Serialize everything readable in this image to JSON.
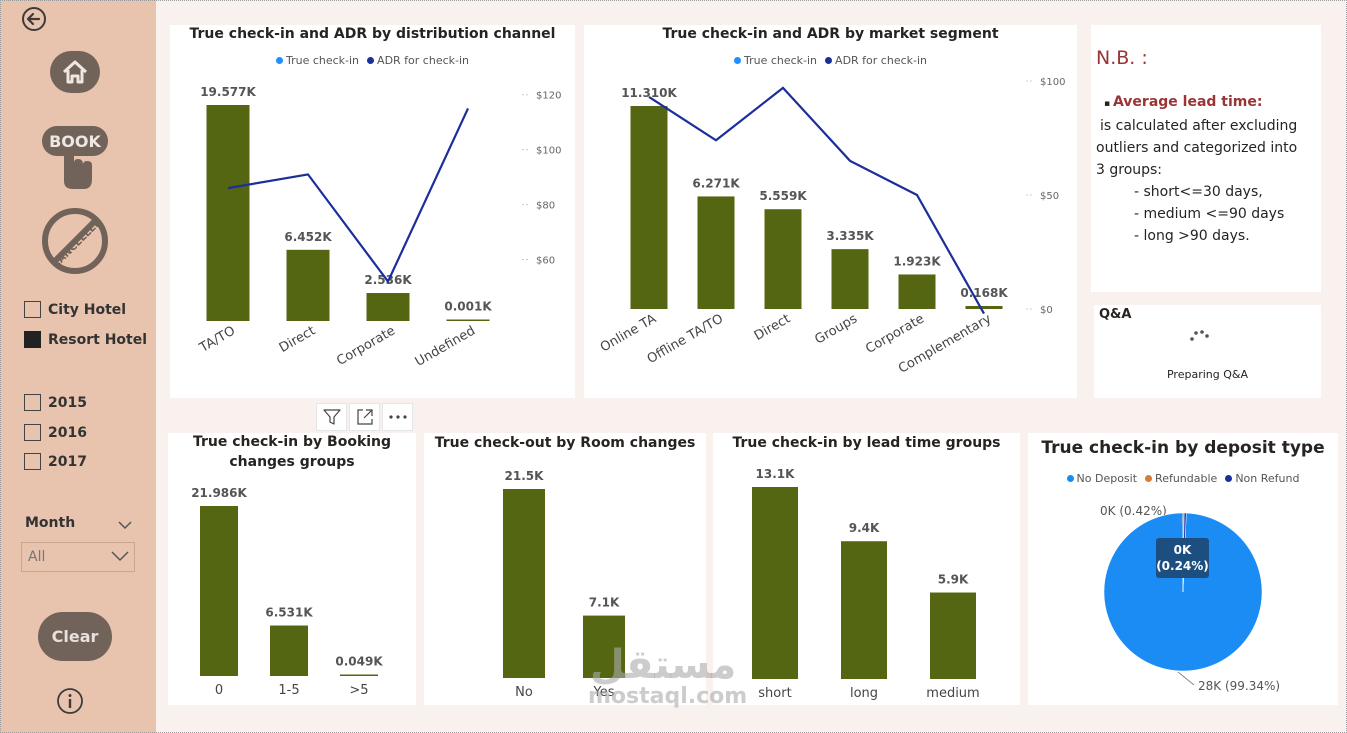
{
  "sidebar": {
    "icons": [
      "back-arrow-icon",
      "home-icon",
      "book-icon",
      "cancelled-icon",
      "info-icon"
    ],
    "book_text": "BOOK",
    "cancelled_text": "CANCELLED",
    "hotel_filters": [
      {
        "label": "City Hotel",
        "checked": false
      },
      {
        "label": "Resort Hotel",
        "checked": true
      }
    ],
    "year_filters": [
      {
        "label": "2015",
        "checked": false
      },
      {
        "label": "2016",
        "checked": false
      },
      {
        "label": "2017",
        "checked": false
      }
    ],
    "month_label": "Month",
    "month_value": "All",
    "clear_label": "Clear"
  },
  "colors": {
    "sidebar": "#e8c3ae",
    "bar": "#546611",
    "line": "#1b2e9a",
    "legend_true": "#1e90ff",
    "legend_adr": "#1b2e9a",
    "pie_nodeposit": "#1a8cf3",
    "pie_refundable": "#d27d3b",
    "pie_nonrefund": "#1b2e9a",
    "note_red": "#9b3434"
  },
  "charts": {
    "channel": {
      "title": "True check-in and ADR by distribution channel",
      "legend": [
        "True check-in",
        "ADR for check-in"
      ],
      "y2_ticks": [
        "$120",
        "$100",
        "$80",
        "$60"
      ]
    },
    "segment": {
      "title": "True check-in and ADR by market segment",
      "legend": [
        "True check-in",
        "ADR for check-in"
      ],
      "y2_ticks": [
        "$100",
        "$50",
        "$0"
      ]
    },
    "booking": {
      "title_line1": "True check-in by Booking",
      "title_line2": "changes groups"
    },
    "room": {
      "title": "True check-out by Room changes"
    },
    "lead": {
      "title": "True check-in by lead time groups"
    },
    "deposit": {
      "title": "True check-in by deposit type",
      "legend": [
        "No Deposit",
        "Refundable",
        "Non Refund"
      ],
      "label_top": "0K (0.42%)",
      "tooltip_line1": "0K",
      "tooltip_line2": "(0.24%)",
      "label_bottom": "28K (99.34%)"
    }
  },
  "chart_data": [
    {
      "type": "bar",
      "title": "True check-in and ADR by distribution channel",
      "categories": [
        "TA/TO",
        "Direct",
        "Corporate",
        "Undefined"
      ],
      "series": [
        {
          "name": "True check-in",
          "values": [
            19577,
            6452,
            2536,
            1
          ],
          "labels": [
            "19.577K",
            "6.452K",
            "2.536K",
            "0.001K"
          ]
        },
        {
          "name": "ADR for check-in",
          "type": "line",
          "axis": "right",
          "values": [
            86,
            91,
            52,
            115
          ]
        }
      ],
      "y2lim": [
        50,
        125
      ]
    },
    {
      "type": "bar",
      "title": "True check-in and ADR by market segment",
      "categories": [
        "Online TA",
        "Offline TA/TO",
        "Direct",
        "Groups",
        "Corporate",
        "Complementary"
      ],
      "series": [
        {
          "name": "True check-in",
          "values": [
            11310,
            6271,
            5559,
            3335,
            1923,
            168
          ],
          "labels": [
            "11.310K",
            "6.271K",
            "5.559K",
            "3.335K",
            "1.923K",
            "0.168K"
          ]
        },
        {
          "name": "ADR for check-in",
          "type": "line",
          "axis": "right",
          "values": [
            93,
            74,
            97,
            65,
            50,
            -2
          ]
        }
      ],
      "y2lim": [
        0,
        100
      ]
    },
    {
      "type": "bar",
      "title": "True check-in by Booking changes groups",
      "categories": [
        "0",
        "1-5",
        ">5"
      ],
      "values": [
        21986,
        6531,
        49
      ],
      "labels": [
        "21.986K",
        "6.531K",
        "0.049K"
      ]
    },
    {
      "type": "bar",
      "title": "True check-out by Room changes",
      "categories": [
        "No",
        "Yes"
      ],
      "values": [
        21500,
        7100
      ],
      "labels": [
        "21.5K",
        "7.1K"
      ]
    },
    {
      "type": "bar",
      "title": "True check-in by lead time groups",
      "categories": [
        "short",
        "long",
        "medium"
      ],
      "values": [
        13100,
        9400,
        5900
      ],
      "labels": [
        "13.1K",
        "9.4K",
        "5.9K"
      ]
    },
    {
      "type": "pie",
      "title": "True check-in by deposit type",
      "categories": [
        "No Deposit",
        "Refundable",
        "Non Refund"
      ],
      "values": [
        99.34,
        0.24,
        0.42
      ]
    }
  ],
  "note": {
    "title": "N.B. :",
    "bullet": "Average lead time:",
    "line1": "is calculated after excluding",
    "line2": "outliers and categorized into",
    "line3": "3 groups:",
    "item1": "- short<=30 days,",
    "item2": "- medium <=90 days",
    "item3": "- long >90 days."
  },
  "qa": {
    "title": "Q&A",
    "status": "Preparing Q&A"
  },
  "watermark": {
    "arabic": "مستقل",
    "latin": "mostaql.com"
  }
}
